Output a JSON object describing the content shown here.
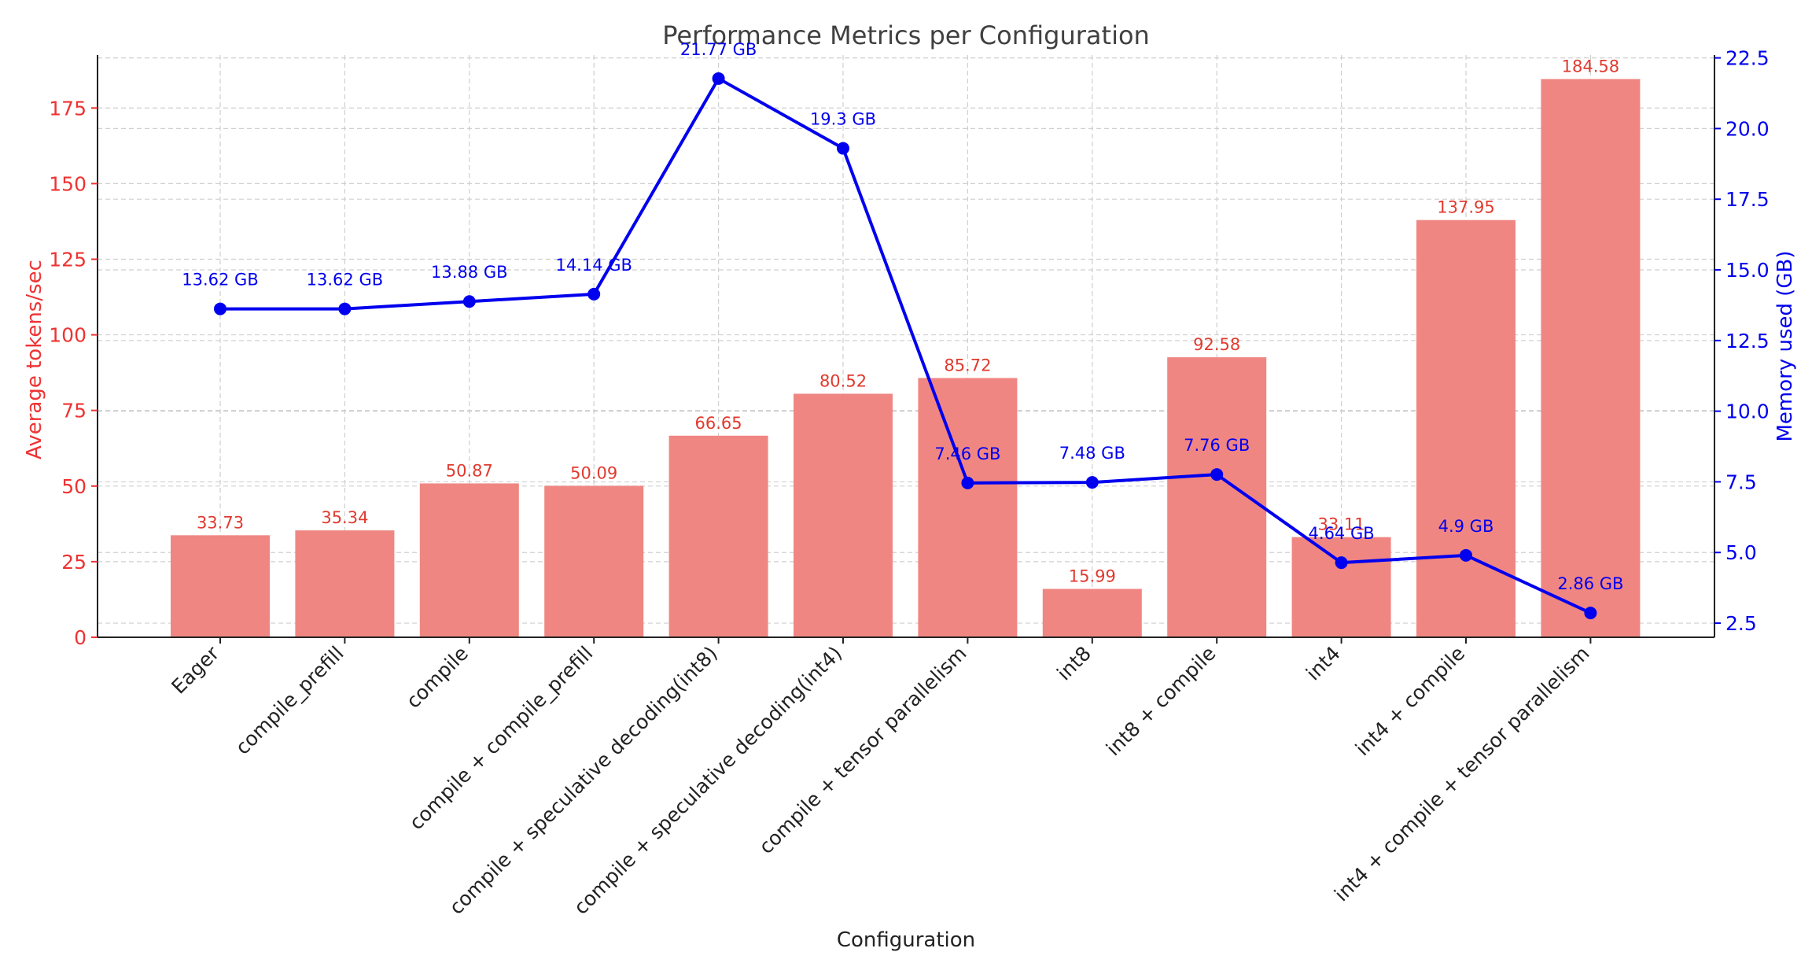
{
  "chart_data": {
    "type": "bar",
    "title": "Performance Metrics per Configuration",
    "xlabel": "Configuration",
    "ylabel": "Average tokens/sec",
    "y2label": "Memory used (GB)",
    "categories": [
      "Eager",
      "compile_prefill",
      "compile",
      "compile + compile_prefill",
      "compile + speculative decoding(int8)",
      "compile + speculative decoding(int4)",
      "compile + tensor parallelism",
      "int8",
      "int8 + compile",
      "int4",
      "int4 + compile",
      "int4 + compile + tensor parallelism"
    ],
    "series": [
      {
        "name": "Average tokens/sec",
        "type": "bar",
        "axis": "left",
        "color": "#f08682",
        "values": [
          33.73,
          35.34,
          50.87,
          50.09,
          66.65,
          80.52,
          85.72,
          15.99,
          92.58,
          33.11,
          137.95,
          184.58
        ],
        "labels": [
          "33.73",
          "35.34",
          "50.87",
          "50.09",
          "66.65",
          "80.52",
          "85.72",
          "15.99",
          "92.58",
          "33.11",
          "137.95",
          "184.58"
        ]
      },
      {
        "name": "Memory used (GB)",
        "type": "line",
        "axis": "right",
        "color": "#0000ee",
        "values": [
          13.62,
          13.62,
          13.88,
          14.14,
          21.77,
          19.3,
          7.46,
          7.48,
          7.76,
          4.64,
          4.9,
          2.86
        ],
        "labels": [
          "13.62 GB",
          "13.62 GB",
          "13.88 GB",
          "14.14 GB",
          "21.77 GB",
          "19.3 GB",
          "7.46 GB",
          "7.48 GB",
          "7.76 GB",
          "4.64 GB",
          "4.9 GB",
          "2.86 GB"
        ]
      }
    ],
    "ylim": [
      0,
      192.5
    ],
    "y2lim": [
      2.0,
      22.6
    ],
    "yticks": [
      0,
      25,
      50,
      75,
      100,
      125,
      150,
      175
    ],
    "y2ticks": [
      2.5,
      5.0,
      7.5,
      10.0,
      12.5,
      15.0,
      17.5,
      20.0,
      22.5
    ],
    "y2tick_labels": [
      "2.5",
      "5.0",
      "7.5",
      "10.0",
      "12.5",
      "15.0",
      "17.5",
      "20.0",
      "22.5"
    ],
    "grid": true,
    "colors": {
      "left_axis": "#ee3333",
      "right_axis": "#0000ee",
      "bars": "#f08682",
      "line": "#0000ee"
    }
  }
}
